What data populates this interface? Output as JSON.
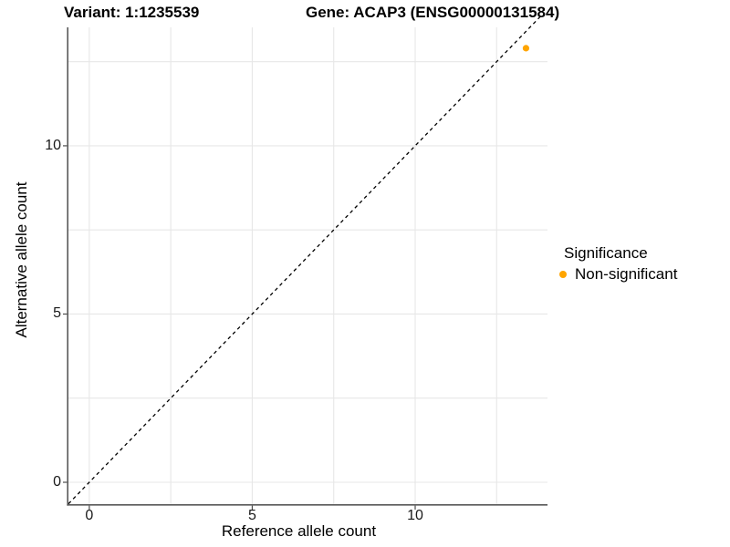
{
  "header": {
    "title_variant": "Variant: 1:1235539",
    "title_gene": "Gene: ACAP3 (ENSG00000131584)"
  },
  "chart_data": {
    "type": "scatter",
    "title_variant": "Variant: 1:1235539",
    "title_gene": "Gene: ACAP3 (ENSG00000131584)",
    "xlabel": "Reference allele count",
    "ylabel": "Alternative allele count",
    "xlim": [
      -0.64,
      14.06
    ],
    "ylim": [
      -0.65,
      13.52
    ],
    "x_breaks": [
      0,
      5,
      10
    ],
    "y_breaks": [
      0,
      5,
      10
    ],
    "x_gridlines": [
      0,
      2.5,
      5,
      7.5,
      10,
      12.5
    ],
    "y_gridlines": [
      0,
      2.5,
      5,
      7.5,
      10,
      12.5
    ],
    "grid": true,
    "series": [
      {
        "name": "Non-significant",
        "color": "#FFA500",
        "points": [
          {
            "x": 13.4,
            "y": 12.9
          }
        ]
      }
    ],
    "identity_line": {
      "style": "dashed",
      "color": "#000000",
      "x1": -0.64,
      "y1": -0.64,
      "x2": 13.9,
      "y2": 13.9
    },
    "legend": {
      "title": "Significance",
      "position": "right",
      "items": [
        {
          "label": "Non-significant",
          "color": "#FFA500"
        }
      ]
    }
  },
  "colors": {
    "background": "#ffffff",
    "grid": "#e7e7e7",
    "axis_line": "#595959",
    "tick": "#4d4d4d",
    "point": "#FFA500",
    "text": "#000000"
  }
}
